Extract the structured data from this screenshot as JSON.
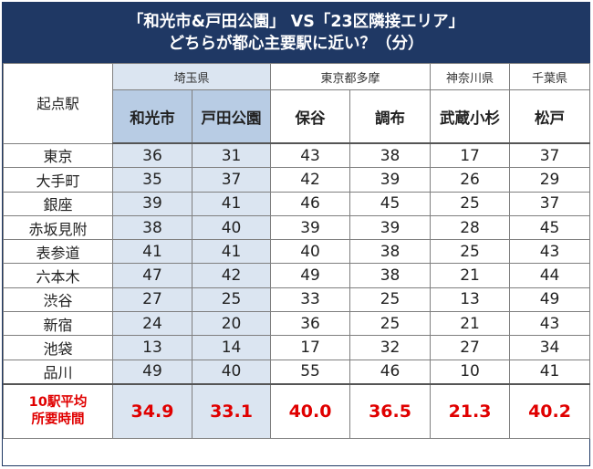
{
  "title": {
    "line1": "「和光市&戸田公園」 VS「23区隣接エリア」",
    "line2": "どちらが都心主要駅に近い？（分）"
  },
  "header": {
    "origin_label": "起点駅",
    "prefectures": [
      "埼玉県",
      "東京都多摩",
      "神奈川県",
      "千葉県"
    ],
    "stations": [
      "和光市",
      "戸田公園",
      "保谷",
      "調布",
      "武蔵小杉",
      "松戸"
    ]
  },
  "rows": [
    {
      "origin": "東京",
      "values": [
        "36",
        "31",
        "43",
        "38",
        "17",
        "37"
      ]
    },
    {
      "origin": "大手町",
      "values": [
        "35",
        "37",
        "42",
        "39",
        "26",
        "29"
      ]
    },
    {
      "origin": "銀座",
      "values": [
        "39",
        "41",
        "46",
        "45",
        "25",
        "37"
      ]
    },
    {
      "origin": "赤坂見附",
      "values": [
        "38",
        "40",
        "39",
        "39",
        "28",
        "45"
      ]
    },
    {
      "origin": "表参道",
      "values": [
        "41",
        "41",
        "40",
        "38",
        "25",
        "43"
      ]
    },
    {
      "origin": "六本木",
      "values": [
        "47",
        "42",
        "49",
        "38",
        "21",
        "44"
      ]
    },
    {
      "origin": "渋谷",
      "values": [
        "27",
        "25",
        "33",
        "25",
        "13",
        "49"
      ]
    },
    {
      "origin": "新宿",
      "values": [
        "24",
        "20",
        "36",
        "25",
        "21",
        "43"
      ]
    },
    {
      "origin": "池袋",
      "values": [
        "13",
        "14",
        "17",
        "32",
        "27",
        "34"
      ]
    },
    {
      "origin": "品川",
      "values": [
        "49",
        "40",
        "55",
        "46",
        "10",
        "41"
      ]
    }
  ],
  "average": {
    "label_line1": "10駅平均",
    "label_line2": "所要時間",
    "values": [
      "34.9",
      "33.1",
      "40.0",
      "36.5",
      "21.3",
      "40.2"
    ]
  },
  "colors": {
    "title_bg": "#1f3864",
    "highlight_light": "#dbe5f1",
    "highlight_header": "#b8cce4",
    "average_text": "#e00000"
  }
}
